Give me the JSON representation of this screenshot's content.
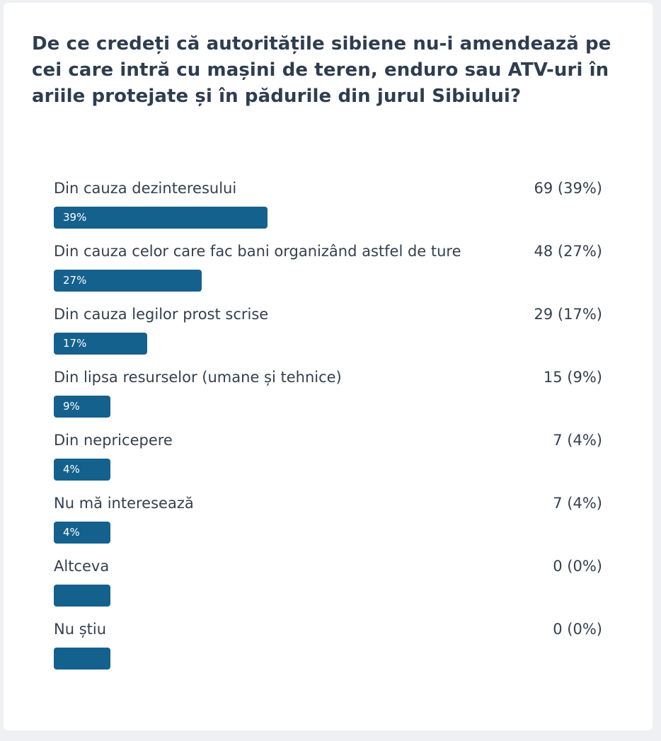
{
  "poll": {
    "question": "De ce credeți că autoritățile sibiene nu-i amendează pe cei care intră cu mașini de teren, enduro sau ATV-uri în ariile protejate și în pădurile din jurul Sibiului?",
    "bar_color": "#15618e",
    "options": [
      {
        "label": "Din cauza dezinteresului",
        "count": "69 (39%)",
        "percent_text": "39%",
        "percent": 39
      },
      {
        "label": "Din cauza celor care fac bani organizând astfel de ture",
        "count": "48 (27%)",
        "percent_text": "27%",
        "percent": 27
      },
      {
        "label": "Din cauza legilor prost scrise",
        "count": "29 (17%)",
        "percent_text": "17%",
        "percent": 17
      },
      {
        "label": "Din lipsa resurselor (umane și tehnice)",
        "count": "15 (9%)",
        "percent_text": "9%",
        "percent": 9
      },
      {
        "label": "Din nepricepere",
        "count": "7 (4%)",
        "percent_text": "4%",
        "percent": 4
      },
      {
        "label": "Nu mă interesează",
        "count": "7 (4%)",
        "percent_text": "4%",
        "percent": 4
      },
      {
        "label": "Altceva",
        "count": "0 (0%)",
        "percent_text": "",
        "percent": 0
      },
      {
        "label": "Nu știu",
        "count": "0 (0%)",
        "percent_text": "",
        "percent": 0
      }
    ]
  }
}
